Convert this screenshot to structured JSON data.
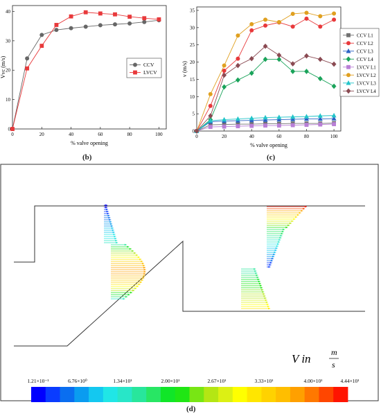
{
  "chart_data": [
    {
      "id": "b",
      "type": "line",
      "xlabel": "% valve opening",
      "ylabel": "Vvc (m/s)",
      "xlim": [
        0,
        105
      ],
      "ylim": [
        0,
        42
      ],
      "xticks": [
        0,
        20,
        40,
        60,
        80,
        100
      ],
      "yticks": [
        0,
        10,
        20,
        30,
        40
      ],
      "legend_position": "center-right",
      "series": [
        {
          "name": "CCV",
          "color": "#666666",
          "marker": "circle",
          "x": [
            0,
            10,
            20,
            30,
            40,
            50,
            60,
            70,
            80,
            90,
            100
          ],
          "y": [
            0,
            24.0,
            32.0,
            33.7,
            34.3,
            34.8,
            35.3,
            35.6,
            35.9,
            36.4,
            37.0
          ]
        },
        {
          "name": "LVCV",
          "color": "#e8393b",
          "marker": "square",
          "x": [
            0,
            10,
            20,
            30,
            40,
            50,
            60,
            70,
            80,
            90,
            100
          ],
          "y": [
            0,
            20.6,
            28.3,
            35.4,
            38.3,
            39.7,
            39.3,
            39.0,
            38.2,
            37.7,
            37.3
          ]
        }
      ]
    },
    {
      "id": "c",
      "type": "line",
      "xlabel": "% valve opening",
      "ylabel": "v (m/s)",
      "xlim": [
        0,
        105
      ],
      "ylim": [
        0,
        36
      ],
      "xticks": [
        0,
        20,
        40,
        60,
        80,
        100
      ],
      "yticks": [
        0,
        5,
        10,
        15,
        20,
        25,
        30,
        35
      ],
      "legend_position": "right",
      "series": [
        {
          "name": "CCV L1",
          "color": "#707070",
          "marker": "square",
          "x": [
            0,
            10,
            20,
            30,
            40,
            50,
            60,
            70,
            80,
            90,
            100
          ],
          "y": [
            0,
            1.8,
            1.9,
            2.0,
            2.0,
            2.1,
            2.1,
            2.2,
            2.2,
            2.2,
            2.3
          ]
        },
        {
          "name": "CCV L2",
          "color": "#e8393b",
          "marker": "circle",
          "x": [
            0,
            10,
            20,
            30,
            40,
            50,
            60,
            70,
            80,
            90,
            100
          ],
          "y": [
            0,
            7.3,
            17.5,
            21.0,
            29.2,
            30.6,
            31.5,
            30.3,
            32.6,
            30.3,
            32.3
          ]
        },
        {
          "name": "CCV L3",
          "color": "#2a62c4",
          "marker": "triangle",
          "x": [
            0,
            10,
            20,
            30,
            40,
            50,
            60,
            70,
            80,
            90,
            100
          ],
          "y": [
            0,
            2.7,
            2.9,
            3.0,
            3.1,
            3.2,
            3.3,
            3.4,
            3.5,
            3.5,
            3.6
          ]
        },
        {
          "name": "CCV L4",
          "color": "#1aa35a",
          "marker": "diamond",
          "x": [
            0,
            10,
            20,
            30,
            40,
            50,
            60,
            70,
            80,
            90,
            100
          ],
          "y": [
            0,
            3.3,
            12.8,
            14.8,
            16.8,
            20.8,
            20.8,
            17.3,
            17.3,
            15.2,
            13.0
          ]
        },
        {
          "name": "LVCV L1",
          "color": "#b97fd6",
          "marker": "square",
          "x": [
            0,
            10,
            20,
            30,
            40,
            50,
            60,
            70,
            80,
            90,
            100
          ],
          "y": [
            0,
            1.2,
            1.3,
            1.4,
            1.5,
            1.6,
            1.6,
            1.7,
            1.8,
            1.9,
            2.0
          ]
        },
        {
          "name": "LVCV L2",
          "color": "#e0a020",
          "marker": "circle",
          "x": [
            0,
            10,
            20,
            30,
            40,
            50,
            60,
            70,
            80,
            90,
            100
          ],
          "y": [
            0,
            10.7,
            19.0,
            27.7,
            31.0,
            32.3,
            31.6,
            34.0,
            34.3,
            33.3,
            34.1
          ]
        },
        {
          "name": "LVCV L3",
          "color": "#22c4c9",
          "marker": "triangle",
          "x": [
            0,
            10,
            20,
            30,
            40,
            50,
            60,
            70,
            80,
            90,
            100
          ],
          "y": [
            0,
            3.0,
            3.3,
            3.5,
            3.7,
            3.9,
            4.0,
            4.1,
            4.2,
            4.4,
            4.5
          ]
        },
        {
          "name": "LVCV L4",
          "color": "#8a4a52",
          "marker": "diamond",
          "x": [
            0,
            10,
            20,
            30,
            40,
            50,
            60,
            70,
            80,
            90,
            100
          ],
          "y": [
            0,
            4.4,
            16.2,
            19.0,
            21.0,
            24.6,
            22.0,
            19.5,
            21.8,
            20.8,
            19.4
          ]
        }
      ]
    }
  ],
  "panel_labels": {
    "b": "(b)",
    "c": "(c)",
    "d": "(d)"
  },
  "velocity_field": {
    "unit_label": "V in",
    "unit_num": "m",
    "unit_den": "s",
    "colorbar_ticks": [
      "1.21×10⁻¹",
      "6.76×10⁰",
      "1.34×10¹",
      "2.00×10¹",
      "2.67×10¹",
      "3.33×10¹",
      "4.00×10¹",
      "4.44×10¹"
    ],
    "colorbar_colors": [
      "#0000ff",
      "#0a3cff",
      "#0a6ef0",
      "#0a9cf0",
      "#14c8f0",
      "#20e6e6",
      "#28e6c8",
      "#28e69c",
      "#28e664",
      "#10e628",
      "#20e614",
      "#78e614",
      "#b4e614",
      "#dcf014",
      "#ffff00",
      "#ffe600",
      "#ffd200",
      "#ffbe00",
      "#ffa000",
      "#ff7800",
      "#ff4600",
      "#ff1400"
    ]
  }
}
